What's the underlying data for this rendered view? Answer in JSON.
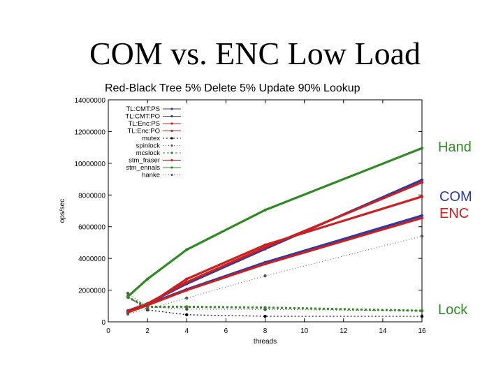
{
  "slide": {
    "title": "COM vs. ENC Low Load"
  },
  "annotations": [
    {
      "text": "Hand",
      "color": "#2e8b22"
    },
    {
      "text": "COM",
      "color": "#2b3aa6"
    },
    {
      "text": "ENC",
      "color": "#cc1f1f"
    },
    {
      "text": "Lock",
      "color": "#2e8b22"
    }
  ],
  "chart_data": {
    "type": "line",
    "title": "Red-Black Tree 5% Delete 5% Update 90% Lookup",
    "xlabel": "threads",
    "ylabel": "ops/sec",
    "xlim": [
      0,
      16
    ],
    "ylim": [
      0,
      14000000
    ],
    "x_ticks": [
      0,
      2,
      4,
      6,
      8,
      10,
      12,
      14,
      16
    ],
    "y_ticks": [
      0,
      2000000,
      4000000,
      6000000,
      8000000,
      10000000,
      12000000,
      14000000
    ],
    "y_tick_labels": [
      "0",
      "2000000",
      "4000000",
      "6000000",
      "8000000",
      "10000000",
      "12000000",
      "14000000"
    ],
    "legend_position": "top-left",
    "series": [
      {
        "name": "TL:CMT:PS",
        "color": "#2b3aa6",
        "x": [
          1,
          2,
          4,
          8,
          16
        ],
        "y": [
          700000,
          1150000,
          2400000,
          4600000,
          8950000
        ]
      },
      {
        "name": "TL:CMT:PO",
        "color": "#2b3aa6",
        "x": [
          1,
          2,
          4,
          8,
          16
        ],
        "y": [
          650000,
          1100000,
          2050000,
          3750000,
          6700000
        ]
      },
      {
        "name": "TL:Enc:PS",
        "color": "#cc1f1f",
        "x": [
          1,
          2,
          4,
          8,
          16
        ],
        "y": [
          680000,
          1150000,
          2500000,
          4700000,
          8800000
        ]
      },
      {
        "name": "TL:Enc:PO",
        "color": "#cc1f1f",
        "x": [
          1,
          2,
          4,
          8,
          16
        ],
        "y": [
          640000,
          1050000,
          2000000,
          3650000,
          6550000
        ]
      },
      {
        "name": "mutex",
        "color": "#000000",
        "x": [
          1,
          2,
          4,
          8,
          16
        ],
        "y": [
          1600000,
          750000,
          450000,
          350000,
          350000
        ]
      },
      {
        "name": "spinlock",
        "color": "#555555",
        "x": [
          1,
          2,
          4,
          8,
          16
        ],
        "y": [
          1800000,
          950000,
          800000,
          780000,
          700000
        ]
      },
      {
        "name": "mcslock",
        "color": "#2e8b22",
        "x": [
          1,
          2,
          4,
          8,
          16
        ],
        "y": [
          1550000,
          950000,
          950000,
          900000,
          700000
        ]
      },
      {
        "name": "stm_fraser",
        "color": "#cc1f1f",
        "x": [
          1,
          2,
          4,
          8,
          16
        ],
        "y": [
          600000,
          1050000,
          2700000,
          4850000,
          7900000
        ]
      },
      {
        "name": "stm_ennals",
        "color": "#2e8b22",
        "x": [
          1,
          2,
          4,
          8,
          16
        ],
        "y": [
          1600000,
          2700000,
          4550000,
          7050000,
          10950000
        ]
      },
      {
        "name": "hanke",
        "color": "#555555",
        "x": [
          1,
          2,
          4,
          8,
          16
        ],
        "y": [
          500000,
          800000,
          1500000,
          2900000,
          5400000
        ]
      }
    ]
  }
}
